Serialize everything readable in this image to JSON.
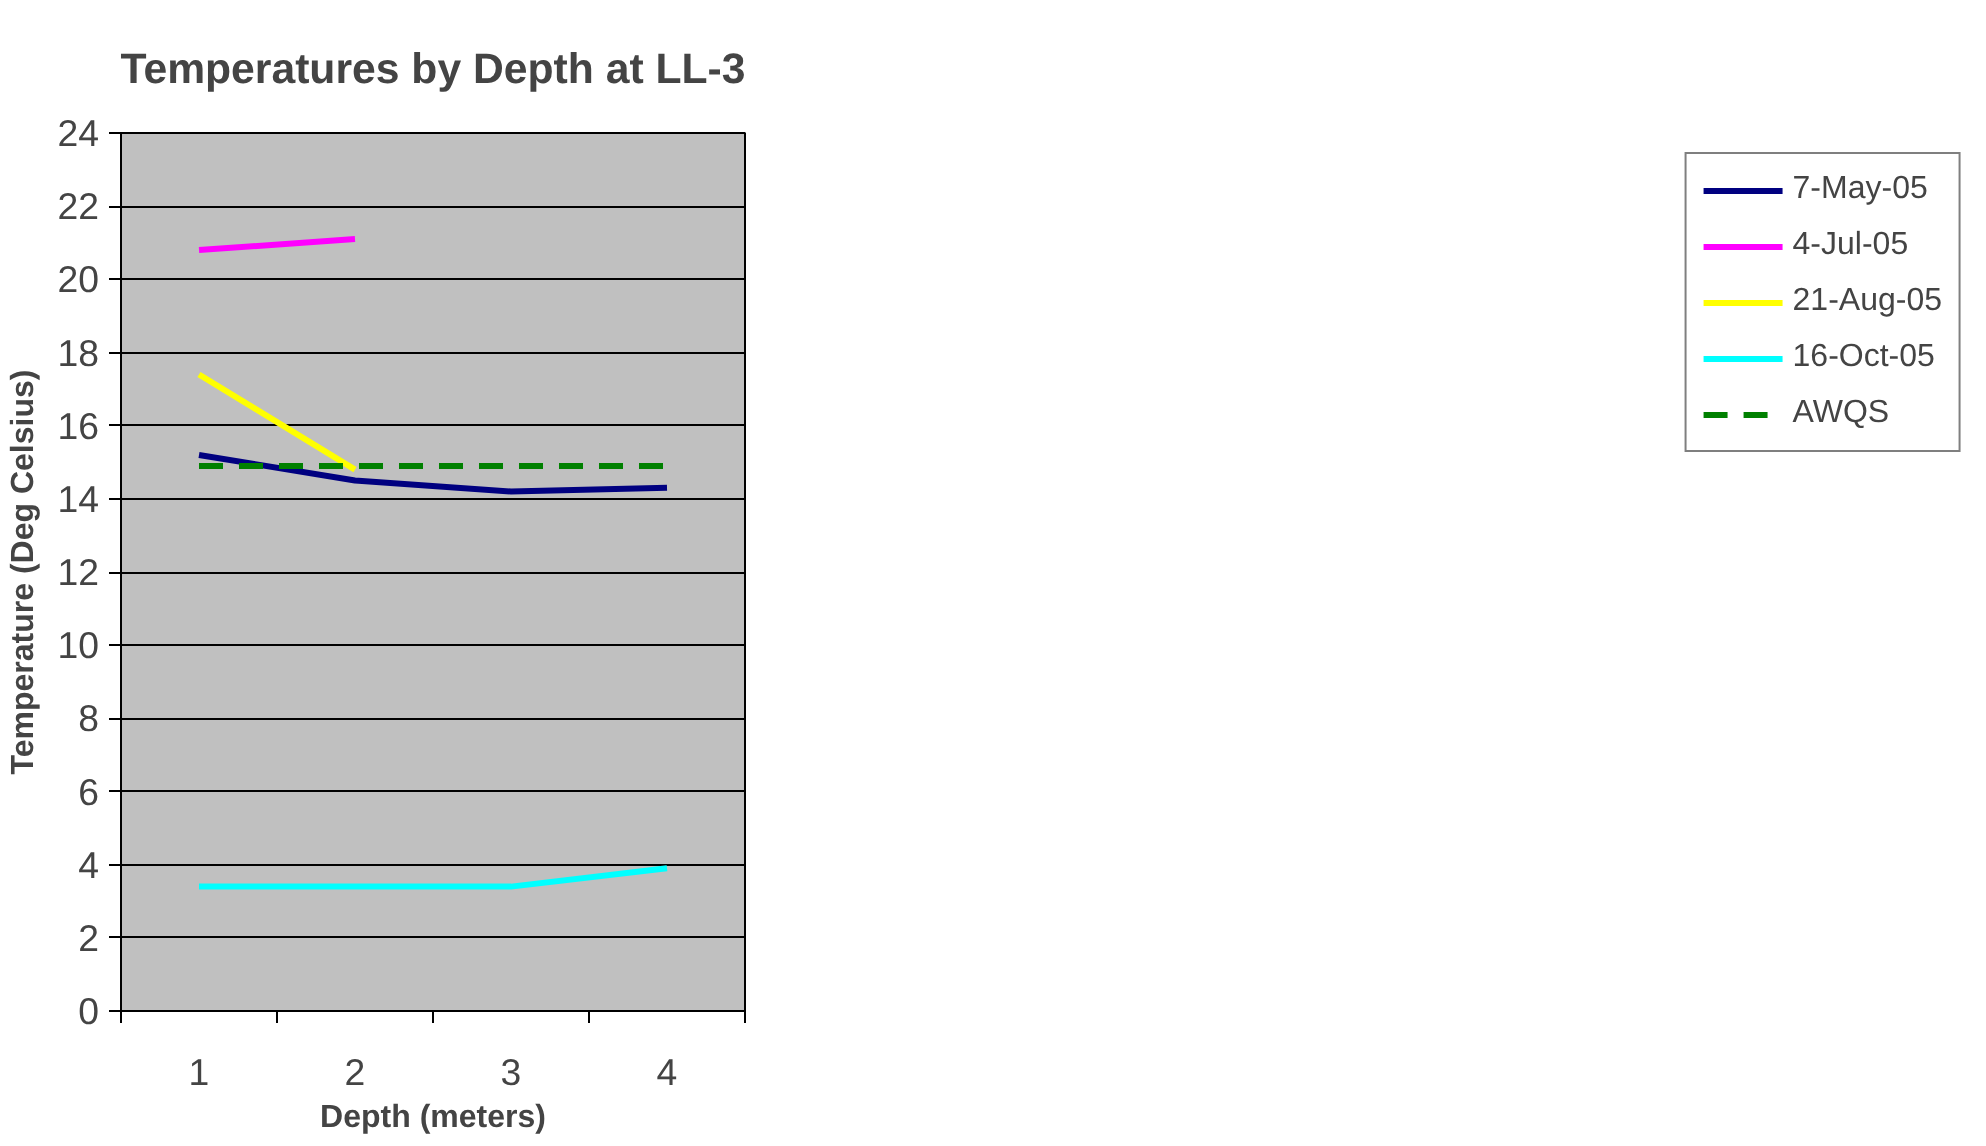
{
  "chart_data": {
    "type": "line",
    "title": "Temperatures by Depth at LL-3",
    "xlabel": "Depth (meters)",
    "ylabel": "Temperature (Deg Celsius)",
    "categories": [
      "1",
      "2",
      "3",
      "4"
    ],
    "series": [
      {
        "name": "7-May-05",
        "color": "#000080",
        "values": [
          15.2,
          14.5,
          14.2,
          14.3
        ]
      },
      {
        "name": "4-Jul-05",
        "color": "#ff00ff",
        "values": [
          20.8,
          21.1,
          null,
          null
        ]
      },
      {
        "name": "21-Aug-05",
        "color": "#ffff00",
        "values": [
          17.4,
          14.8,
          null,
          null
        ]
      },
      {
        "name": "16-Oct-05",
        "color": "#00ffff",
        "values": [
          3.4,
          3.4,
          3.4,
          3.9
        ]
      },
      {
        "name": "AWQS",
        "color": "#008000",
        "values": [
          14.9,
          14.9,
          14.9,
          14.9
        ],
        "line_style": "dashed"
      }
    ],
    "ylim": [
      0,
      24
    ],
    "yticks": [
      0,
      2,
      4,
      6,
      8,
      10,
      12,
      14,
      16,
      18,
      20,
      22,
      24
    ],
    "grid": "y",
    "legend": "right",
    "marker": "none"
  }
}
